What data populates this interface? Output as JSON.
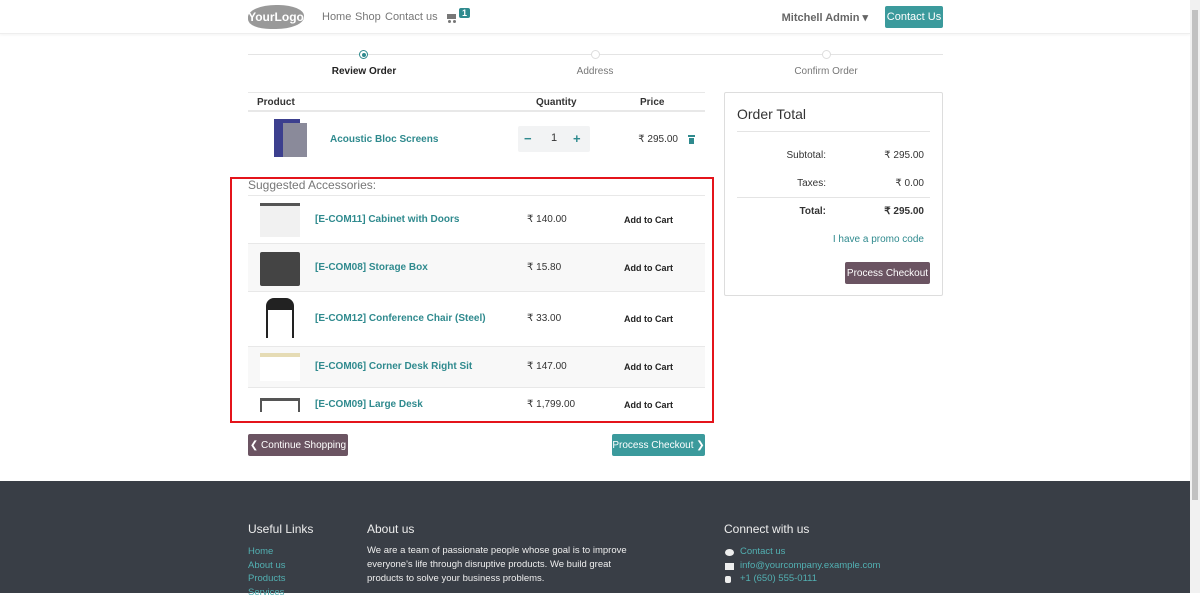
{
  "nav": {
    "logo": "YourLogo",
    "links": [
      "Home",
      "Shop",
      "Contact us"
    ],
    "cart_count": "1",
    "user": "Mitchell Admin ▾",
    "contact_btn": "Contact Us"
  },
  "steps": [
    {
      "label": "Review Order",
      "active": true
    },
    {
      "label": "Address",
      "active": false
    },
    {
      "label": "Confirm Order",
      "active": false
    }
  ],
  "cart": {
    "headers": {
      "product": "Product",
      "quantity": "Quantity",
      "price": "Price"
    },
    "items": [
      {
        "name": "Acoustic Bloc Screens",
        "quantity": "1",
        "price": "₹ 295.00"
      }
    ],
    "minus": "−",
    "plus": "+"
  },
  "suggested": {
    "title": "Suggested Accessories:",
    "items": [
      {
        "name": "[E-COM11] Cabinet with Doors",
        "price": "₹ 140.00",
        "action": "Add to Cart"
      },
      {
        "name": "[E-COM08] Storage Box",
        "price": "₹ 15.80",
        "action": "Add to Cart"
      },
      {
        "name": "[E-COM12] Conference Chair (Steel)",
        "price": "₹ 33.00",
        "action": "Add to Cart"
      },
      {
        "name": "[E-COM06] Corner Desk Right Sit",
        "price": "₹ 147.00",
        "action": "Add to Cart"
      },
      {
        "name": "[E-COM09] Large Desk",
        "price": "₹ 1,799.00",
        "action": "Add to Cart"
      }
    ]
  },
  "buttons": {
    "continue": "❮ Continue Shopping",
    "checkout": "Process Checkout ❯"
  },
  "order_total": {
    "title": "Order Total",
    "subtotal_label": "Subtotal:",
    "subtotal": "₹ 295.00",
    "taxes_label": "Taxes:",
    "taxes": "₹ 0.00",
    "total_label": "Total:",
    "total": "₹ 295.00",
    "promo": "I have a promo code",
    "checkout": "Process Checkout"
  },
  "footer": {
    "useful_title": "Useful Links",
    "useful_links": [
      "Home",
      "About us",
      "Products",
      "Services"
    ],
    "about_title": "About us",
    "about_text": "We are a team of passionate people whose goal is to improve everyone's life through disruptive products. We build great products to solve your business problems.",
    "connect_title": "Connect with us",
    "connect": [
      {
        "icon": "comment-icon",
        "text": "Contact us"
      },
      {
        "icon": "envelope-icon",
        "text": "info@yourcompany.example.com"
      },
      {
        "icon": "phone-icon",
        "text": "+1 (650) 555-0111"
      }
    ]
  },
  "colors": {
    "accent": "#2f8a8e",
    "secondary": "#6b5462",
    "footer": "#393e46",
    "highlight": "#e4141b"
  }
}
